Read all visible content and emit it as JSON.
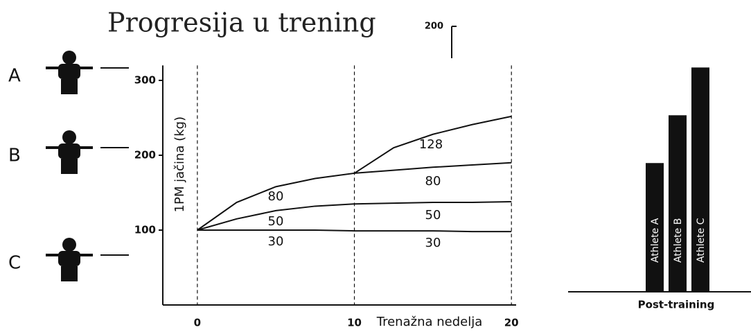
{
  "title": "Progresija u trening",
  "athletes": [
    "A",
    "B",
    "C"
  ],
  "chart_data": [
    {
      "type": "line",
      "xlabel": "Trenažna nedelja",
      "ylabel": "1PM jačina (kg)",
      "x": [
        0,
        2.5,
        5,
        7.5,
        10,
        12.5,
        15,
        17.5,
        20
      ],
      "series": [
        {
          "name": "30",
          "color": "#111111",
          "values": [
            100,
            100,
            100,
            100,
            99,
            99,
            99,
            98,
            98
          ]
        },
        {
          "name": "50",
          "color": "#111111",
          "values": [
            100,
            115,
            126,
            132,
            135,
            136,
            137,
            137,
            138
          ]
        },
        {
          "name": "80",
          "color": "#111111",
          "values": [
            100,
            137,
            158,
            169,
            176,
            180,
            184,
            187,
            190
          ]
        },
        {
          "name": "128",
          "color": "#111111",
          "values": [
            null,
            null,
            null,
            null,
            176,
            210,
            228,
            241,
            252
          ]
        }
      ],
      "xlim": [
        -2.2,
        20.3
      ],
      "ylim": [
        0,
        320
      ],
      "xticks": [
        0,
        10,
        20
      ],
      "yticks": [
        100,
        200,
        300
      ]
    },
    {
      "type": "bar",
      "xlabel": "Post-training",
      "categories": [
        "Athlete A",
        "Athlete B",
        "Athlete C"
      ],
      "values": [
        97,
        133,
        169
      ],
      "color": "#111111",
      "ylim": [
        0,
        200
      ],
      "yticks": [
        200
      ]
    }
  ]
}
